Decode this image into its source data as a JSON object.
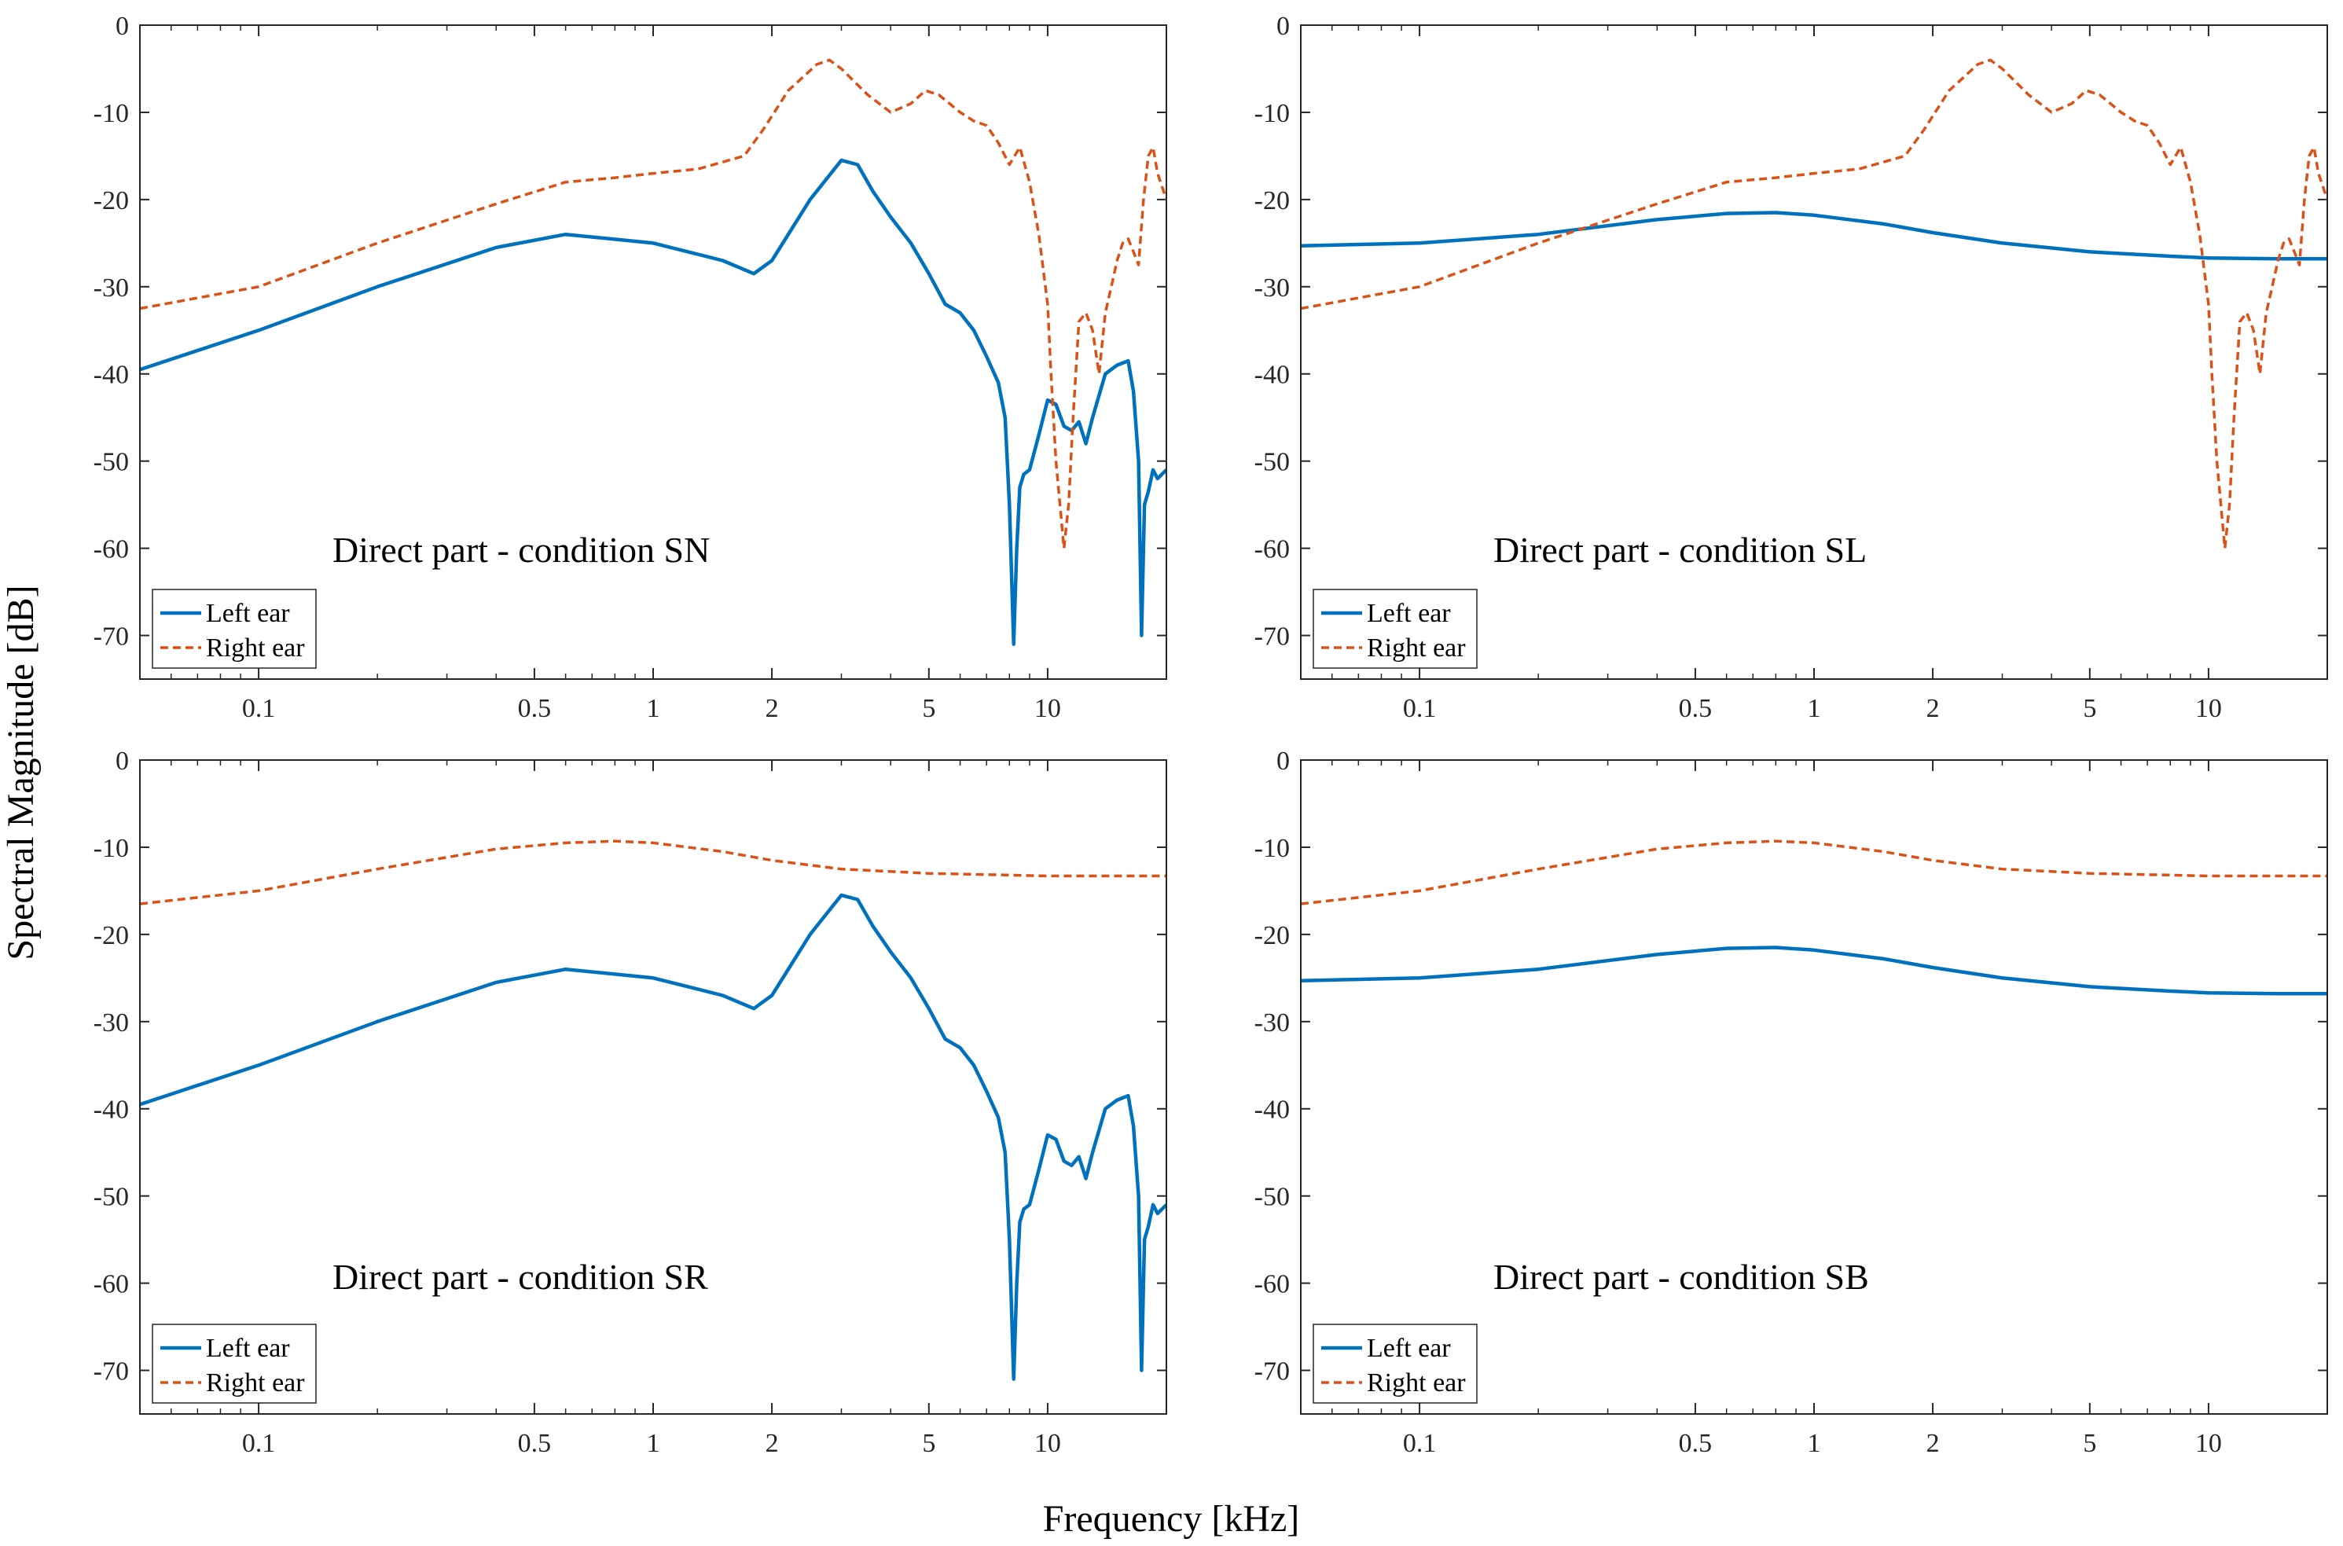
{
  "figure": {
    "ylabel": "Spectral Magnitude [dB]",
    "xlabel": "Frequency [kHz]"
  },
  "colors": {
    "left": "#0072BD",
    "right": "#D95319",
    "axis": "#262626",
    "background": "#ffffff"
  },
  "chart_data": [
    {
      "type": "line",
      "title": "Direct part - condition SN",
      "xscale": "log",
      "xlim": [
        0.05,
        20
      ],
      "ylim": [
        -75,
        0
      ],
      "xticks": [
        0.1,
        0.5,
        1,
        2,
        5,
        10
      ],
      "xtick_labels": [
        "0.1",
        "0.5",
        "1",
        "2",
        "5",
        "10"
      ],
      "yticks": [
        0,
        -10,
        -20,
        -30,
        -40,
        -50,
        -60,
        -70
      ],
      "ytick_labels": [
        "0",
        "-10",
        "-20",
        "-30",
        "-40",
        "-50",
        "-60",
        "-70"
      ],
      "legend": {
        "location": "bottom-left",
        "entries": [
          "Left ear",
          "Right ear"
        ]
      },
      "series": [
        {
          "name": "Left ear",
          "style": "solid",
          "x": [
            0.05,
            0.1,
            0.2,
            0.4,
            0.6,
            1.0,
            1.5,
            1.8,
            2.0,
            2.5,
            3.0,
            3.3,
            3.6,
            4.0,
            4.5,
            5.0,
            5.5,
            6.0,
            6.5,
            7.0,
            7.5,
            7.8,
            8.0,
            8.2,
            8.35,
            8.5,
            8.7,
            9.0,
            9.5,
            10.0,
            10.5,
            11.0,
            11.5,
            12.0,
            12.5,
            13.0,
            14.0,
            15.0,
            16.0,
            16.5,
            17.0,
            17.3,
            17.6,
            18.0,
            18.5,
            19.0,
            20.0
          ],
          "y": [
            -39.5,
            -35,
            -30,
            -25.5,
            -24,
            -25,
            -27,
            -28.5,
            -27,
            -20,
            -15.5,
            -16,
            -19,
            -22,
            -25,
            -28.5,
            -32,
            -33,
            -35,
            -38,
            -41,
            -45,
            -55,
            -71,
            -60,
            -53,
            -51.5,
            -51,
            -47,
            -43,
            -43.5,
            -46,
            -46.5,
            -45.5,
            -48,
            -45,
            -40,
            -39,
            -38.5,
            -42,
            -50,
            -70,
            -55,
            -53.5,
            -51,
            -52,
            -51
          ]
        },
        {
          "name": "Right ear",
          "style": "dashed",
          "x": [
            0.05,
            0.1,
            0.2,
            0.4,
            0.6,
            0.8,
            1.0,
            1.3,
            1.7,
            1.9,
            2.2,
            2.6,
            2.8,
            3.0,
            3.5,
            4.0,
            4.5,
            4.9,
            5.3,
            6.0,
            6.5,
            7.0,
            7.5,
            8.0,
            8.5,
            9.0,
            9.5,
            10.0,
            10.2,
            10.5,
            11.0,
            11.3,
            11.6,
            12.0,
            12.5,
            13.0,
            13.5,
            14.0,
            14.5,
            15.0,
            15.5,
            16.0,
            16.5,
            17.0,
            17.5,
            18.0,
            18.5,
            19.0,
            20.0
          ],
          "y": [
            -32.5,
            -30,
            -25,
            -20.5,
            -18,
            -17.5,
            -17,
            -16.5,
            -15,
            -12,
            -7.5,
            -4.5,
            -4,
            -5,
            -8,
            -10,
            -9,
            -7.5,
            -8,
            -10,
            -11,
            -11.5,
            -13.5,
            -16,
            -14,
            -18,
            -24,
            -32,
            -40,
            -50,
            -60,
            -55,
            -45,
            -34,
            -33,
            -35,
            -40,
            -33,
            -30,
            -27,
            -25,
            -24.5,
            -26,
            -27.5,
            -20,
            -15,
            -14,
            -17,
            -20
          ]
        }
      ]
    },
    {
      "type": "line",
      "title": "Direct part - condition SL",
      "xscale": "log",
      "xlim": [
        0.05,
        20
      ],
      "ylim": [
        -75,
        0
      ],
      "xticks": [
        0.1,
        0.5,
        1,
        2,
        5,
        10
      ],
      "xtick_labels": [
        "0.1",
        "0.5",
        "1",
        "2",
        "5",
        "10"
      ],
      "yticks": [
        0,
        -10,
        -20,
        -30,
        -40,
        -50,
        -60,
        -70
      ],
      "ytick_labels": [
        "0",
        "-10",
        "-20",
        "-30",
        "-40",
        "-50",
        "-60",
        "-70"
      ],
      "legend": {
        "location": "bottom-left",
        "entries": [
          "Left ear",
          "Right ear"
        ]
      },
      "series": [
        {
          "name": "Left ear",
          "style": "solid",
          "x": [
            0.05,
            0.1,
            0.2,
            0.4,
            0.6,
            0.8,
            1.0,
            1.5,
            2.0,
            3.0,
            5.0,
            8.0,
            10.0,
            15.0,
            20.0
          ],
          "y": [
            -25.3,
            -25,
            -24,
            -22.3,
            -21.6,
            -21.5,
            -21.8,
            -22.8,
            -23.8,
            -25,
            -26,
            -26.5,
            -26.7,
            -26.8,
            -26.8
          ]
        },
        {
          "name": "Right ear",
          "style": "dashed",
          "x": [
            0.05,
            0.1,
            0.2,
            0.4,
            0.6,
            0.8,
            1.0,
            1.3,
            1.7,
            1.9,
            2.2,
            2.6,
            2.8,
            3.0,
            3.5,
            4.0,
            4.5,
            4.9,
            5.3,
            6.0,
            6.5,
            7.0,
            7.5,
            8.0,
            8.5,
            9.0,
            9.5,
            10.0,
            10.2,
            10.5,
            11.0,
            11.3,
            11.6,
            12.0,
            12.5,
            13.0,
            13.5,
            14.0,
            14.5,
            15.0,
            15.5,
            16.0,
            16.5,
            17.0,
            17.5,
            18.0,
            18.5,
            19.0,
            20.0
          ],
          "y": [
            -32.5,
            -30,
            -25,
            -20.5,
            -18,
            -17.5,
            -17,
            -16.5,
            -15,
            -12,
            -7.5,
            -4.5,
            -4,
            -5,
            -8,
            -10,
            -9,
            -7.5,
            -8,
            -10,
            -11,
            -11.5,
            -13.5,
            -16,
            -14,
            -18,
            -24,
            -32,
            -40,
            -50,
            -60,
            -55,
            -45,
            -34,
            -33,
            -35,
            -40,
            -33,
            -30,
            -27,
            -25,
            -24.5,
            -26,
            -27.5,
            -20,
            -15,
            -14,
            -17,
            -20
          ]
        }
      ]
    },
    {
      "type": "line",
      "title": "Direct part - condition SR",
      "xscale": "log",
      "xlim": [
        0.05,
        20
      ],
      "ylim": [
        -75,
        0
      ],
      "xticks": [
        0.1,
        0.5,
        1,
        2,
        5,
        10
      ],
      "xtick_labels": [
        "0.1",
        "0.5",
        "1",
        "2",
        "5",
        "10"
      ],
      "yticks": [
        0,
        -10,
        -20,
        -30,
        -40,
        -50,
        -60,
        -70
      ],
      "ytick_labels": [
        "0",
        "-10",
        "-20",
        "-30",
        "-40",
        "-50",
        "-60",
        "-70"
      ],
      "legend": {
        "location": "bottom-left",
        "entries": [
          "Left ear",
          "Right ear"
        ]
      },
      "series": [
        {
          "name": "Left ear",
          "style": "solid",
          "x": [
            0.05,
            0.1,
            0.2,
            0.4,
            0.6,
            1.0,
            1.5,
            1.8,
            2.0,
            2.5,
            3.0,
            3.3,
            3.6,
            4.0,
            4.5,
            5.0,
            5.5,
            6.0,
            6.5,
            7.0,
            7.5,
            7.8,
            8.0,
            8.2,
            8.35,
            8.5,
            8.7,
            9.0,
            9.5,
            10.0,
            10.5,
            11.0,
            11.5,
            12.0,
            12.5,
            13.0,
            14.0,
            15.0,
            16.0,
            16.5,
            17.0,
            17.3,
            17.6,
            18.0,
            18.5,
            19.0,
            20.0
          ],
          "y": [
            -39.5,
            -35,
            -30,
            -25.5,
            -24,
            -25,
            -27,
            -28.5,
            -27,
            -20,
            -15.5,
            -16,
            -19,
            -22,
            -25,
            -28.5,
            -32,
            -33,
            -35,
            -38,
            -41,
            -45,
            -55,
            -71,
            -60,
            -53,
            -51.5,
            -51,
            -47,
            -43,
            -43.5,
            -46,
            -46.5,
            -45.5,
            -48,
            -45,
            -40,
            -39,
            -38.5,
            -42,
            -50,
            -70,
            -55,
            -53.5,
            -51,
            -52,
            -51
          ]
        },
        {
          "name": "Right ear",
          "style": "dashed",
          "x": [
            0.05,
            0.1,
            0.2,
            0.4,
            0.6,
            0.8,
            1.0,
            1.5,
            2.0,
            3.0,
            5.0,
            8.0,
            10.0,
            15.0,
            20.0
          ],
          "y": [
            -16.5,
            -15,
            -12.5,
            -10.2,
            -9.5,
            -9.3,
            -9.5,
            -10.5,
            -11.5,
            -12.5,
            -13,
            -13.2,
            -13.3,
            -13.3,
            -13.3
          ]
        }
      ]
    },
    {
      "type": "line",
      "title": "Direct part - condition SB",
      "xscale": "log",
      "xlim": [
        0.05,
        20
      ],
      "ylim": [
        -75,
        0
      ],
      "xticks": [
        0.1,
        0.5,
        1,
        2,
        5,
        10
      ],
      "xtick_labels": [
        "0.1",
        "0.5",
        "1",
        "2",
        "5",
        "10"
      ],
      "yticks": [
        0,
        -10,
        -20,
        -30,
        -40,
        -50,
        -60,
        -70
      ],
      "ytick_labels": [
        "0",
        "-10",
        "-20",
        "-30",
        "-40",
        "-50",
        "-60",
        "-70"
      ],
      "legend": {
        "location": "bottom-left",
        "entries": [
          "Left ear",
          "Right ear"
        ]
      },
      "series": [
        {
          "name": "Left ear",
          "style": "solid",
          "x": [
            0.05,
            0.1,
            0.2,
            0.4,
            0.6,
            0.8,
            1.0,
            1.5,
            2.0,
            3.0,
            5.0,
            8.0,
            10.0,
            15.0,
            20.0
          ],
          "y": [
            -25.3,
            -25,
            -24,
            -22.3,
            -21.6,
            -21.5,
            -21.8,
            -22.8,
            -23.8,
            -25,
            -26,
            -26.5,
            -26.7,
            -26.8,
            -26.8
          ]
        },
        {
          "name": "Right ear",
          "style": "dashed",
          "x": [
            0.05,
            0.1,
            0.2,
            0.4,
            0.6,
            0.8,
            1.0,
            1.5,
            2.0,
            3.0,
            5.0,
            8.0,
            10.0,
            15.0,
            20.0
          ],
          "y": [
            -16.5,
            -15,
            -12.5,
            -10.2,
            -9.5,
            -9.3,
            -9.5,
            -10.5,
            -11.5,
            -12.5,
            -13,
            -13.2,
            -13.3,
            -13.3,
            -13.3
          ]
        }
      ]
    }
  ]
}
